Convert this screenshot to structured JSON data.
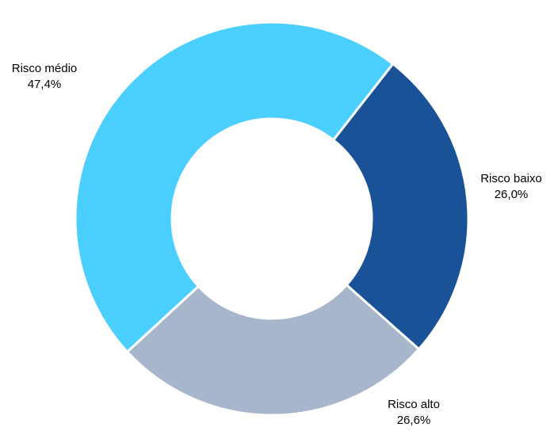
{
  "chart_data": {
    "type": "pie",
    "variant": "donut",
    "title": "",
    "legend": "none",
    "slices": [
      {
        "label": "Risco médio",
        "value": 47.4,
        "value_label": "47,4%",
        "color": "#4BCFFF"
      },
      {
        "label": "Risco baixo",
        "value": 26.0,
        "value_label": "26,0%",
        "color": "#1A5297"
      },
      {
        "label": "Risco alto",
        "value": 26.6,
        "value_label": "26,6%",
        "color": "#A7B6CB"
      }
    ]
  }
}
